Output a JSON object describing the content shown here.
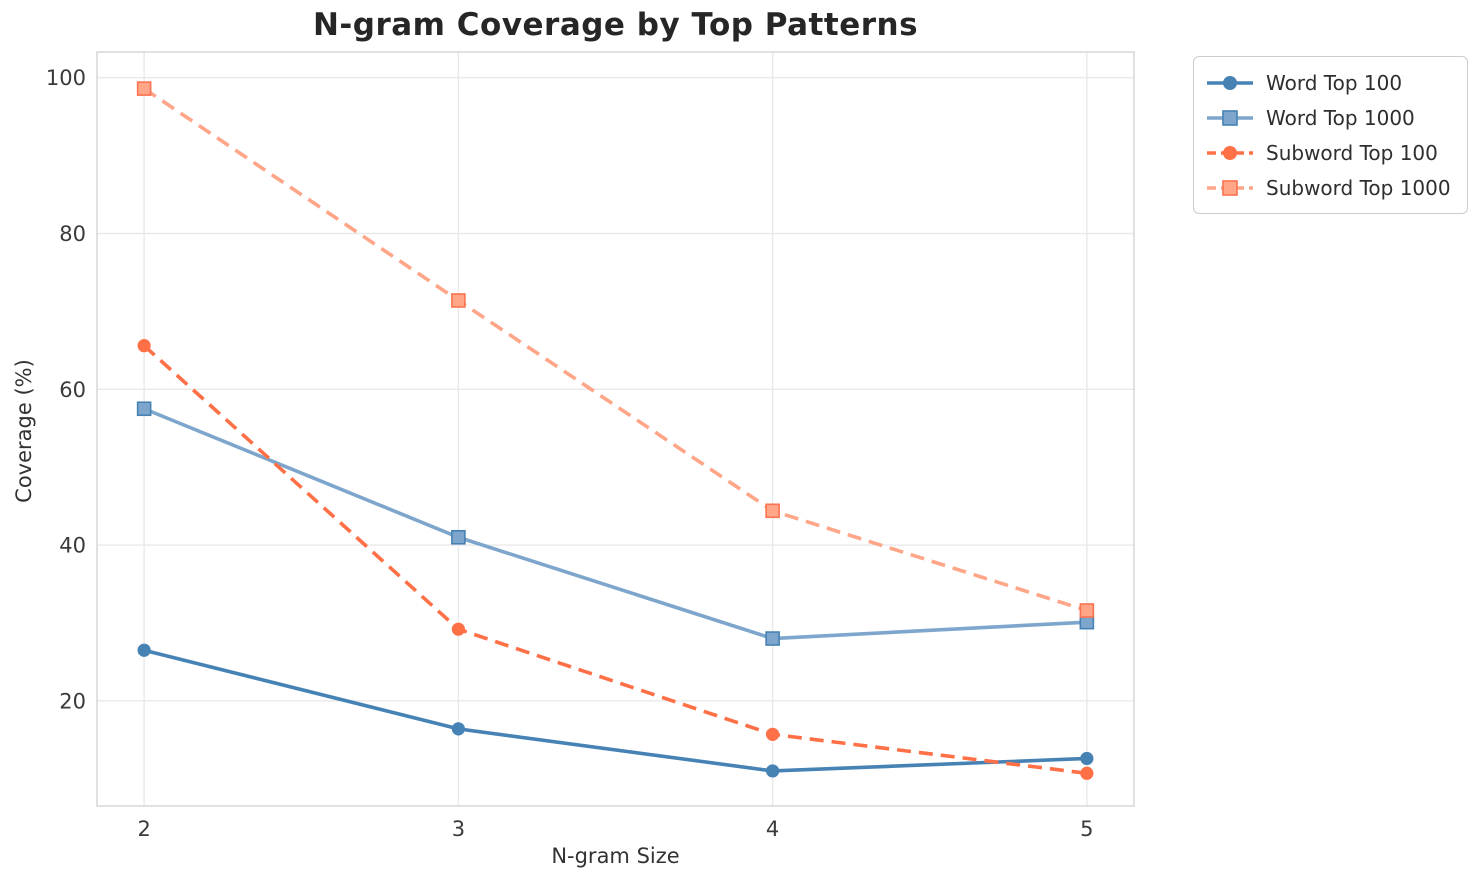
{
  "chart_data": {
    "type": "line",
    "title": "N-gram Coverage by Top Patterns",
    "xlabel": "N-gram Size",
    "ylabel": "Coverage (%)",
    "x": [
      2,
      3,
      4,
      5
    ],
    "x_tick_labels": [
      "2",
      "3",
      "4",
      "5"
    ],
    "y_ticks": [
      20,
      40,
      60,
      80,
      100
    ],
    "xlim": [
      1.85,
      5.15
    ],
    "ylim": [
      6.5,
      103.3
    ],
    "grid": true,
    "legend_position": "outside-top-right",
    "series": [
      {
        "name": "Word Top 100",
        "values": [
          26.5,
          16.4,
          11.0,
          12.6
        ],
        "color": "#4682B4",
        "line_style": "solid",
        "marker": "circle",
        "marker_edge": "#4682B4"
      },
      {
        "name": "Word Top 1000",
        "values": [
          57.5,
          41.0,
          28.0,
          30.1
        ],
        "color": "#7EA6CC",
        "line_style": "solid",
        "marker": "square",
        "marker_edge": "#4682B4"
      },
      {
        "name": "Subword Top 100",
        "values": [
          65.6,
          29.2,
          15.7,
          10.7
        ],
        "color": "#FF7047",
        "line_style": "dashed",
        "marker": "circle",
        "marker_edge": "#FF7047"
      },
      {
        "name": "Subword Top 1000",
        "values": [
          98.6,
          71.4,
          44.4,
          31.6
        ],
        "color": "#FFA588",
        "line_style": "dashed",
        "marker": "square",
        "marker_edge": "#FB7350"
      }
    ],
    "colors": {
      "background": "#ffffff",
      "grid": "#e9e9e9",
      "spine": "#d4d4d4",
      "tick_text": "#3a3a3a",
      "title_text": "#262626",
      "legend_border": "#cccccc"
    }
  }
}
